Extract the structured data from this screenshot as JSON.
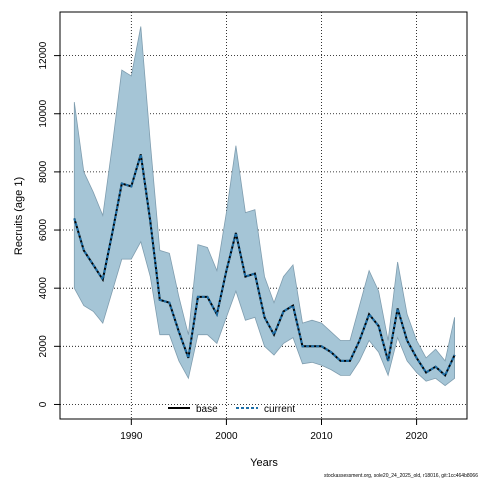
{
  "chart_data": {
    "type": "area",
    "title": "",
    "xlabel": "Years",
    "ylabel": "Recruits (age 1)",
    "xlim": [
      1982.5,
      2025.3
    ],
    "ylim": [
      -500,
      13500
    ],
    "xticks": [
      1990,
      2000,
      2010,
      2020
    ],
    "yticks": [
      0,
      2000,
      4000,
      6000,
      8000,
      10000,
      12000
    ],
    "grid": true,
    "legend_position": "bottom-center",
    "band_color": "#a5c5d6",
    "band_edge_color": "#7f9daf",
    "x": [
      1984,
      1985,
      1986,
      1987,
      1988,
      1989,
      1990,
      1991,
      1992,
      1993,
      1994,
      1995,
      1996,
      1997,
      1998,
      1999,
      2000,
      2001,
      2002,
      2003,
      2004,
      2005,
      2006,
      2007,
      2008,
      2009,
      2010,
      2011,
      2012,
      2013,
      2014,
      2015,
      2016,
      2017,
      2018,
      2019,
      2020,
      2021,
      2022,
      2023,
      2024
    ],
    "series": [
      {
        "name": "base",
        "style": "solid",
        "color": "#000000",
        "values": [
          6400,
          5300,
          4800,
          4300,
          5900,
          7600,
          7500,
          8600,
          6300,
          3600,
          3500,
          2500,
          1600,
          3700,
          3700,
          3100,
          4600,
          5900,
          4400,
          4500,
          3000,
          2400,
          3200,
          3400,
          2000,
          2000,
          2000,
          1800,
          1500,
          1500,
          2200,
          3100,
          2700,
          1500,
          3300,
          2200,
          1600,
          1100,
          1300,
          1000,
          1700
        ]
      },
      {
        "name": "current",
        "style": "dashed",
        "color": "#1d6fa8",
        "values": [
          6400,
          5300,
          4800,
          4300,
          5900,
          7600,
          7500,
          8600,
          6300,
          3600,
          3500,
          2500,
          1600,
          3700,
          3700,
          3100,
          4600,
          5900,
          4400,
          4500,
          3000,
          2400,
          3200,
          3400,
          2000,
          2000,
          2000,
          1800,
          1500,
          1500,
          2200,
          3100,
          2700,
          1500,
          3300,
          2200,
          1600,
          1100,
          1300,
          1000,
          1700
        ]
      }
    ],
    "band": {
      "lower": [
        4000,
        3400,
        3200,
        2800,
        3900,
        5000,
        5000,
        5600,
        4400,
        2400,
        2400,
        1500,
        900,
        2400,
        2400,
        2100,
        3000,
        3900,
        2900,
        3000,
        2000,
        1700,
        2100,
        2300,
        1400,
        1450,
        1350,
        1200,
        1000,
        1000,
        1500,
        2200,
        1800,
        1000,
        2300,
        1500,
        1100,
        800,
        900,
        650,
        900
      ],
      "upper": [
        10400,
        8000,
        7300,
        6500,
        8900,
        11500,
        11300,
        13000,
        9000,
        5300,
        5200,
        3700,
        2400,
        5500,
        5400,
        4600,
        6600,
        8900,
        6600,
        6700,
        4400,
        3500,
        4400,
        4800,
        2800,
        2900,
        2800,
        2500,
        2200,
        2200,
        3400,
        4600,
        3900,
        2200,
        4900,
        3100,
        2200,
        1600,
        1900,
        1500,
        3000
      ]
    },
    "footnote": "stockassessment.org, sole20_24_2025_old, r18016, git:1cc464b8066"
  }
}
